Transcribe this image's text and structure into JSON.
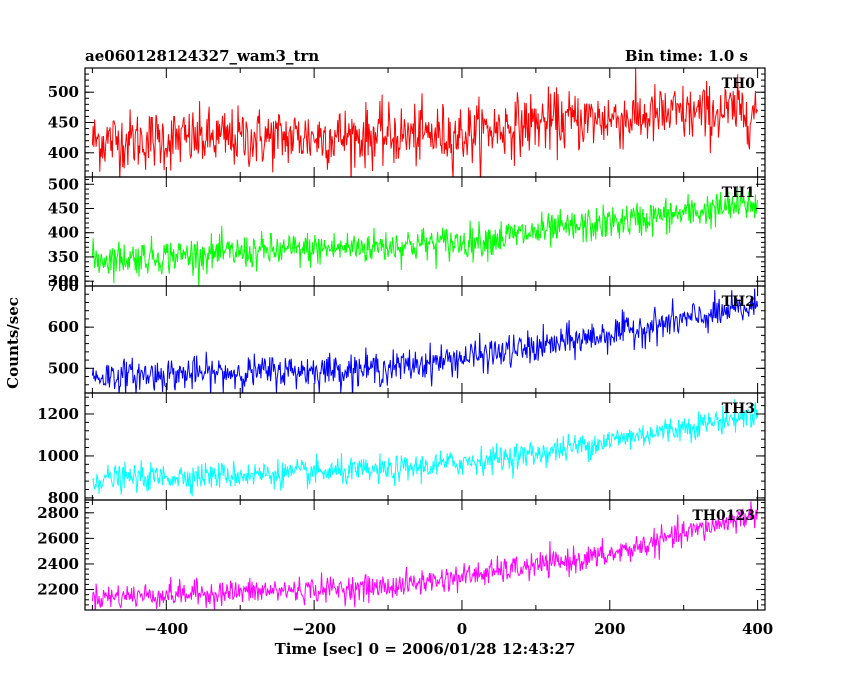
{
  "header": {
    "title_left": "ae060128124327_wam3_trn",
    "title_right": "Bin time: 1.0 s"
  },
  "axes": {
    "ylabel": "Counts/sec",
    "xlabel": "Time [sec] 0 = 2006/01/28 12:43:27"
  },
  "chart_data": {
    "type": "line",
    "x_range": [
      -510,
      410
    ],
    "x_ticks": [
      -400,
      -200,
      0,
      200,
      400
    ],
    "x_tick_labels": [
      "−400",
      "−200",
      "0",
      "200",
      "400"
    ],
    "bin_time_s": 1.0,
    "panels": [
      {
        "label": "TH0",
        "color": "#ff0000",
        "ylim": [
          360,
          540
        ],
        "y_ticks": [
          400,
          450,
          500
        ],
        "y_tick_labels": [
          "400",
          "450",
          "500"
        ],
        "trend": [
          {
            "x": -500,
            "y": 420
          },
          {
            "x": 0,
            "y": 430
          },
          {
            "x": 100,
            "y": 450
          },
          {
            "x": 400,
            "y": 470
          }
        ],
        "noise_sd": 25
      },
      {
        "label": "TH1",
        "color": "#00ff00",
        "ylim": [
          290,
          515
        ],
        "y_ticks": [
          300,
          350,
          400,
          450,
          500
        ],
        "y_tick_labels": [
          "300",
          "350",
          "400",
          "450",
          "500"
        ],
        "trend": [
          {
            "x": -500,
            "y": 345
          },
          {
            "x": 0,
            "y": 380
          },
          {
            "x": 400,
            "y": 460
          }
        ],
        "noise_sd": 18
      },
      {
        "label": "TH2",
        "color": "#0000ff",
        "ylim": [
          440,
          700
        ],
        "y_ticks": [
          500,
          600,
          700
        ],
        "y_tick_labels": [
          "500",
          "600",
          "700"
        ],
        "trend": [
          {
            "x": -500,
            "y": 480
          },
          {
            "x": -100,
            "y": 500
          },
          {
            "x": 100,
            "y": 550
          },
          {
            "x": 400,
            "y": 650
          }
        ],
        "noise_sd": 20
      },
      {
        "label": "TH3",
        "color": "#00ffff",
        "ylim": [
          790,
          1300
        ],
        "y_ticks": [
          800,
          1000,
          1200
        ],
        "y_tick_labels": [
          "800",
          "1000",
          "1200"
        ],
        "trend": [
          {
            "x": -500,
            "y": 890
          },
          {
            "x": -100,
            "y": 930
          },
          {
            "x": 100,
            "y": 1010
          },
          {
            "x": 400,
            "y": 1200
          }
        ],
        "noise_sd": 32
      },
      {
        "label": "TH0123",
        "color": "#ff00ff",
        "ylim": [
          2040,
          2900
        ],
        "y_ticks": [
          2200,
          2400,
          2600,
          2800
        ],
        "y_tick_labels": [
          "2200",
          "2400",
          "2600",
          "2800"
        ],
        "trend": [
          {
            "x": -500,
            "y": 2140
          },
          {
            "x": -100,
            "y": 2220
          },
          {
            "x": 0,
            "y": 2300
          },
          {
            "x": 200,
            "y": 2470
          },
          {
            "x": 400,
            "y": 2800
          }
        ],
        "noise_sd": 50
      }
    ]
  }
}
